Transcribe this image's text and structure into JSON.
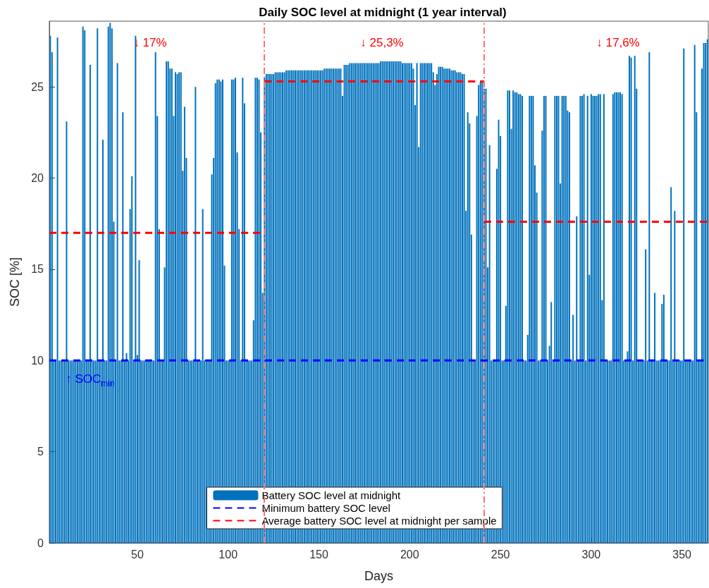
{
  "chart_data": {
    "type": "bar",
    "title": "Daily SOC level at midnight (1 year interval)",
    "xlabel": "Days",
    "ylabel": "SOC [%]",
    "xlim": [
      1.5,
      364.5
    ],
    "xticks": [
      50,
      100,
      150,
      200,
      250,
      300,
      350
    ],
    "ylim": [
      0,
      28.6
    ],
    "yticks": [
      0,
      5,
      10,
      15,
      20,
      25
    ],
    "grid": false,
    "legend": "bottom",
    "series": [
      {
        "name": "Battery SOC level at midnight",
        "color": "#0072bd",
        "x": [
          2,
          3,
          4,
          5,
          6,
          7,
          8,
          9,
          10,
          11,
          12,
          13,
          14,
          15,
          16,
          17,
          18,
          19,
          20,
          21,
          22,
          23,
          24,
          25,
          26,
          27,
          28,
          29,
          30,
          31,
          32,
          33,
          34,
          35,
          36,
          37,
          38,
          39,
          40,
          41,
          42,
          43,
          44,
          45,
          46,
          47,
          48,
          49,
          50,
          51,
          52,
          53,
          54,
          55,
          56,
          57,
          58,
          59,
          60,
          61,
          62,
          63,
          64,
          65,
          66,
          67,
          68,
          69,
          70,
          71,
          72,
          73,
          74,
          75,
          76,
          77,
          78,
          79,
          80,
          81,
          82,
          83,
          84,
          85,
          86,
          87,
          88,
          89,
          90,
          91,
          92,
          93,
          94,
          95,
          96,
          97,
          98,
          99,
          100,
          101,
          102,
          103,
          104,
          105,
          106,
          107,
          108,
          109,
          110,
          111,
          112,
          113,
          114,
          115,
          116,
          117,
          118,
          119,
          120,
          121,
          122,
          123,
          124,
          125,
          126,
          127,
          128,
          129,
          130,
          131,
          132,
          133,
          134,
          135,
          136,
          137,
          138,
          139,
          140,
          141,
          142,
          143,
          144,
          145,
          146,
          147,
          148,
          149,
          150,
          151,
          152,
          153,
          154,
          155,
          156,
          157,
          158,
          159,
          160,
          161,
          162,
          163,
          164,
          165,
          166,
          167,
          168,
          169,
          170,
          171,
          172,
          173,
          174,
          175,
          176,
          177,
          178,
          179,
          180,
          181,
          182,
          183,
          184,
          185,
          186,
          187,
          188,
          189,
          190,
          191,
          192,
          193,
          194,
          195,
          196,
          197,
          198,
          199,
          200,
          201,
          202,
          203,
          204,
          205,
          206,
          207,
          208,
          209,
          210,
          211,
          212,
          213,
          214,
          215,
          216,
          217,
          218,
          219,
          220,
          221,
          222,
          223,
          224,
          225,
          226,
          227,
          228,
          229,
          230,
          231,
          232,
          233,
          234,
          235,
          236,
          237,
          238,
          239,
          240,
          241,
          242,
          243,
          244,
          245,
          246,
          247,
          248,
          249,
          250,
          251,
          252,
          253,
          254,
          255,
          256,
          257,
          258,
          259,
          260,
          261,
          262,
          263,
          264,
          265,
          266,
          267,
          268,
          269,
          270,
          271,
          272,
          273,
          274,
          275,
          276,
          277,
          278,
          279,
          280,
          281,
          282,
          283,
          284,
          285,
          286,
          287,
          288,
          289,
          290,
          291,
          292,
          293,
          294,
          295,
          296,
          297,
          298,
          299,
          300,
          301,
          302,
          303,
          304,
          305,
          306,
          307,
          308,
          309,
          310,
          311,
          312,
          313,
          314,
          315,
          316,
          317,
          318,
          319,
          320,
          321,
          322,
          323,
          324,
          325,
          326,
          327,
          328,
          329,
          330,
          331,
          332,
          333,
          334,
          335,
          336,
          337,
          338,
          339,
          340,
          341,
          342,
          343,
          344,
          345,
          346,
          347,
          348,
          349,
          350,
          351,
          352,
          353,
          354,
          355,
          356,
          357,
          358,
          359,
          360,
          361,
          362,
          363,
          364
        ],
        "values": [
          27.8,
          26.9,
          10,
          10,
          27.7,
          10,
          10,
          10,
          10,
          23.1,
          10,
          10,
          10,
          10,
          10,
          10,
          10,
          10,
          28.3,
          28.1,
          10,
          10,
          26.2,
          10,
          10,
          10,
          28.2,
          10,
          10,
          22.1,
          10,
          10,
          28.3,
          28.5,
          28.2,
          17.6,
          10,
          26.3,
          10,
          10,
          23.6,
          10,
          10.4,
          10,
          18.3,
          20.1,
          10,
          27.8,
          10.3,
          15.5,
          10,
          10,
          10,
          10,
          10,
          10,
          10,
          10,
          26.9,
          23.4,
          17.2,
          10,
          10,
          15.1,
          26.4,
          26.4,
          26.0,
          26.0,
          23.4,
          25.8,
          25.7,
          25.8,
          25.8,
          20.4,
          23.9,
          21.1,
          10,
          10,
          10,
          10,
          25.0,
          10,
          10,
          10,
          18.3,
          10,
          10,
          10,
          10,
          20.2,
          21.1,
          25.2,
          25.4,
          25.4,
          25.3,
          25.4,
          15.2,
          10,
          10,
          10,
          25.4,
          25.4,
          25.5,
          21.4,
          17.2,
          10,
          25.5,
          24.1,
          10,
          10,
          10,
          10,
          12.2,
          25.5,
          25.5,
          25.4,
          22.5,
          13.7,
          25.5,
          25.7,
          25.7,
          25.7,
          25.7,
          25.7,
          25.8,
          25.8,
          25.8,
          25.8,
          25.8,
          25.8,
          25.9,
          25.9,
          25.9,
          25.9,
          25.9,
          25.9,
          25.9,
          25.9,
          25.9,
          25.9,
          25.9,
          25.9,
          25.9,
          25.9,
          25.9,
          25.9,
          25.9,
          25.9,
          25.9,
          25.9,
          25.9,
          26.0,
          26.0,
          26.0,
          26.0,
          26.0,
          26.0,
          26.0,
          26.0,
          26.0,
          26.0,
          24.5,
          26.2,
          26.2,
          26.2,
          26.3,
          26.3,
          26.3,
          26.3,
          26.3,
          26.3,
          26.3,
          26.3,
          26.3,
          26.3,
          26.3,
          26.3,
          26.3,
          26.3,
          26.3,
          26.3,
          26.3,
          26.4,
          26.4,
          26.4,
          26.4,
          26.4,
          26.4,
          26.4,
          26.4,
          26.4,
          26.4,
          26.4,
          26.4,
          26.3,
          26.3,
          26.3,
          26.3,
          26.3,
          26.3,
          26.0,
          24.0,
          26.3,
          21.7,
          26.3,
          26.3,
          26.3,
          26.3,
          26.3,
          26.3,
          26.3,
          25.8,
          25.1,
          25.7,
          26.1,
          26.1,
          26.1,
          26.0,
          26.0,
          26.0,
          26.0,
          25.9,
          25.9,
          25.9,
          25.8,
          25.8,
          25.8,
          25.7,
          25.7,
          18.2,
          23.6,
          23.0,
          16.9,
          10,
          10,
          23.4,
          25.1,
          25.3,
          25.3,
          24.9,
          24.9,
          15.1,
          21.8,
          10,
          10,
          10,
          20.5,
          23.2,
          22.3,
          10,
          10,
          13.0,
          24.8,
          24.8,
          22.7,
          24.8,
          24.7,
          24.7,
          24.6,
          24.6,
          24.5,
          10,
          10,
          11.4,
          24.5,
          24.5,
          24.5,
          20.7,
          19.2,
          10,
          10,
          22.6,
          24.5,
          24.5,
          10,
          10.8,
          13.2,
          10,
          24.5,
          24.5,
          24.5,
          19.7,
          24.5,
          24.5,
          24.5,
          23.7,
          23.6,
          10,
          12.5,
          10,
          17.9,
          10,
          24.5,
          24.5,
          24.6,
          10,
          24.5,
          14.7,
          24.6,
          24.5,
          24.5,
          24.5,
          24.6,
          24.6,
          13.3,
          24.6,
          10,
          10,
          10,
          10,
          24.6,
          24.7,
          24.7,
          24.7,
          24.7,
          24.6,
          10,
          10,
          10.5,
          26.7,
          26.6,
          10,
          26.7,
          24.9,
          10,
          10,
          10,
          10,
          16.1,
          10,
          26.9,
          10,
          10,
          13.7,
          10,
          10,
          10,
          13.1,
          13.6,
          10,
          10,
          10,
          19.5,
          10,
          18.2,
          10,
          10,
          10,
          10,
          27.1,
          10,
          10,
          10,
          10,
          10,
          27.3,
          23.6,
          10,
          10,
          26.0,
          27.4,
          27.4,
          27.6
        ]
      },
      {
        "name": "Minimum battery SOC level",
        "type": "line",
        "line_style": "dashed",
        "color": "#0000ff",
        "x": [
          1.5,
          364.5
        ],
        "values": [
          10,
          10
        ]
      },
      {
        "name": "Average battery SOC level at midnight per sample",
        "type": "line",
        "line_style": "dashed",
        "color": "#ff0000",
        "x": [
          1.5,
          120
        ],
        "values": [
          17,
          17
        ]
      },
      {
        "type": "line",
        "line_style": "dashed",
        "color": "#ff0000",
        "x": [
          120,
          241
        ],
        "values": [
          25.3,
          25.3
        ]
      },
      {
        "type": "line",
        "line_style": "dashed",
        "color": "#ff0000",
        "x": [
          241,
          364.5
        ],
        "values": [
          17.6,
          17.6
        ]
      }
    ],
    "ref_lines": [
      {
        "axis": "x",
        "value": 120,
        "color": "#ff7070",
        "line_style": "dashed"
      },
      {
        "axis": "x",
        "value": 241,
        "color": "#ff7070",
        "line_style": "dashed"
      }
    ],
    "annotations": [
      "↓ 17%",
      "↓ 25,3%",
      "↓ 17,6%",
      {
        "text": "↑ SOC$_{min}$",
        "x": 24,
        "y": 10
      }
    ]
  }
}
